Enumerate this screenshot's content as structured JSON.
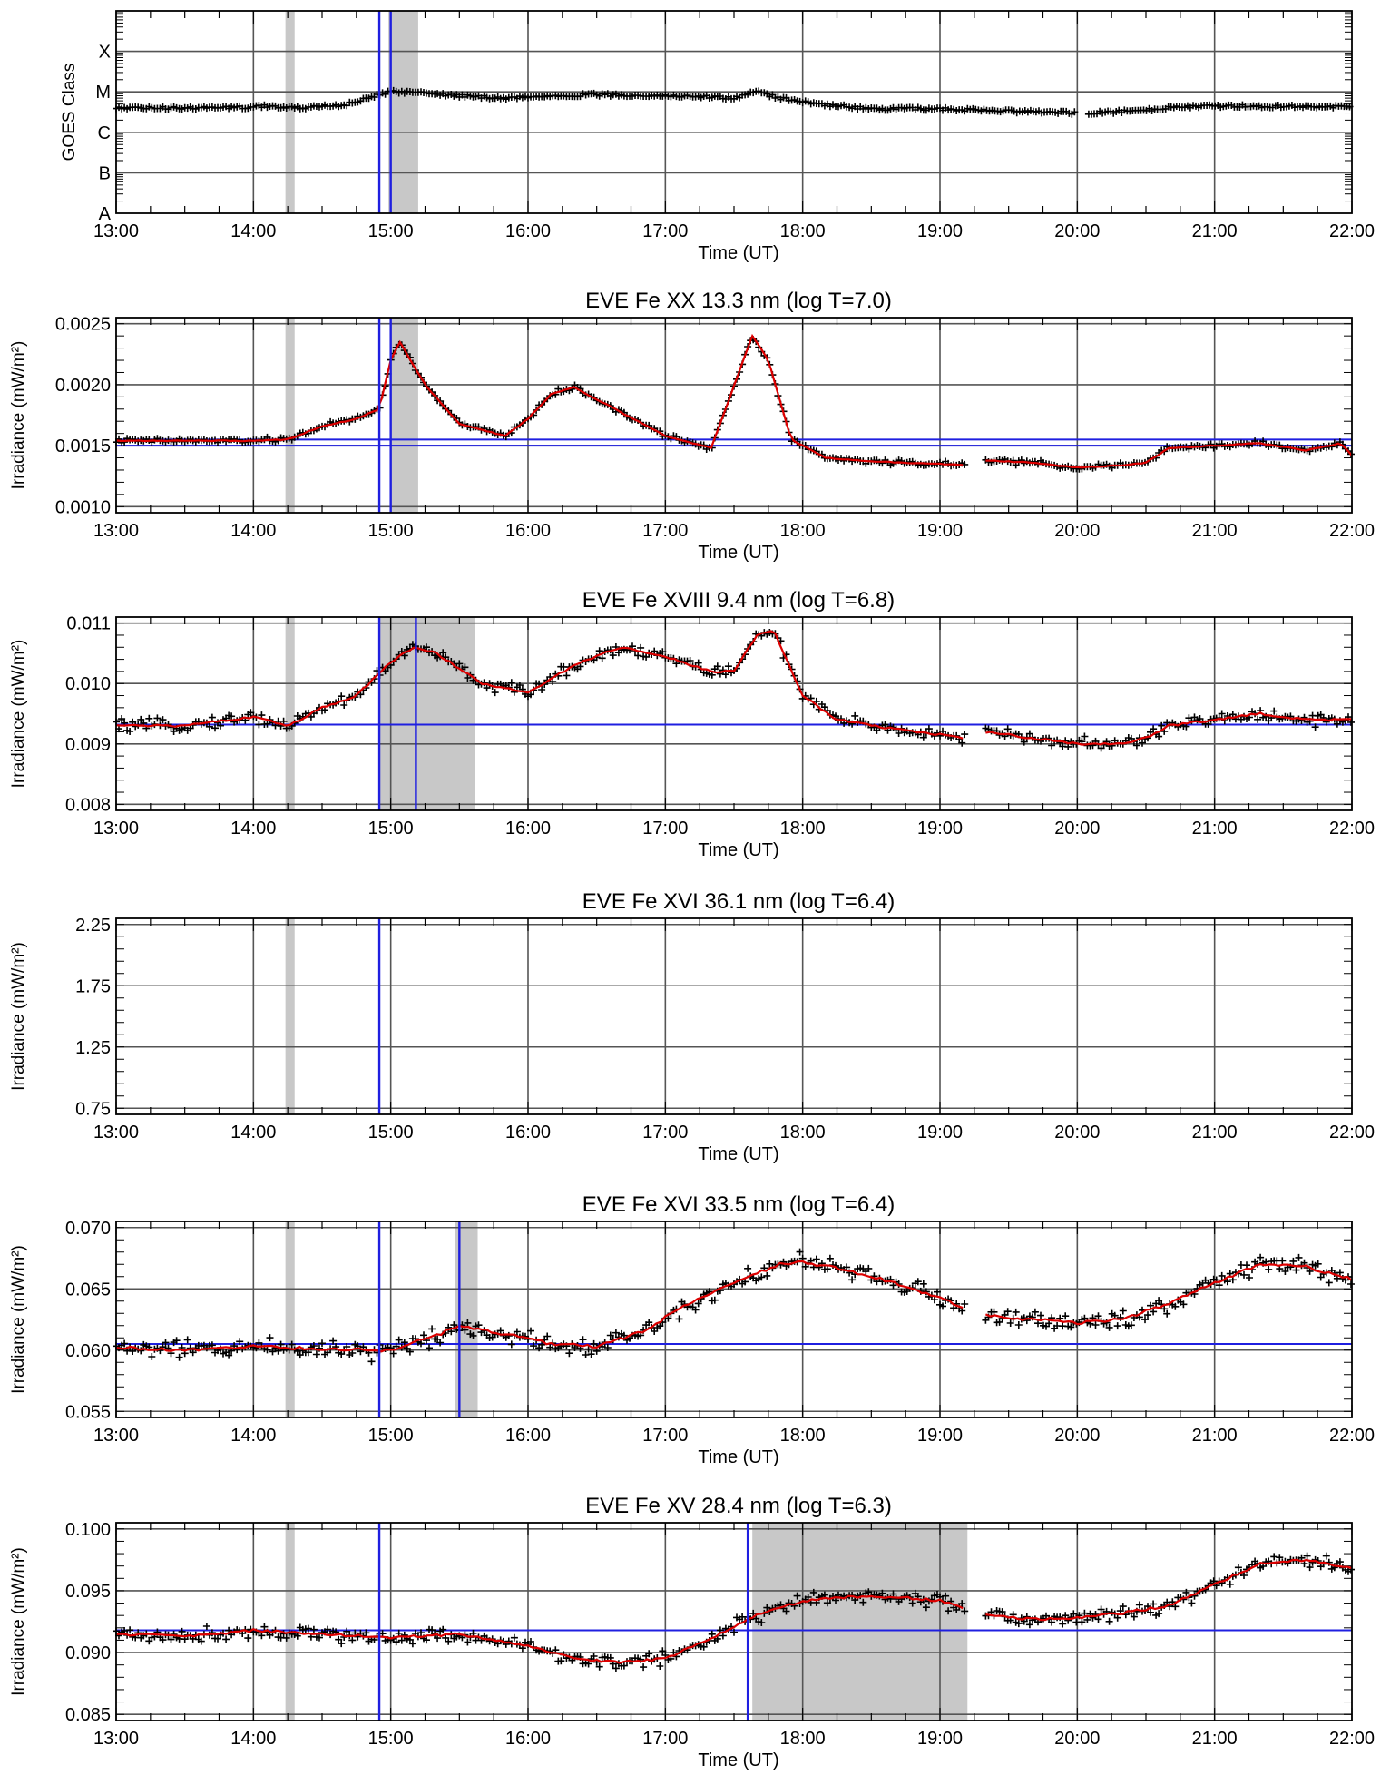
{
  "chart_data": [
    {
      "type": "line",
      "title": "",
      "xlabel": "Time (UT)",
      "ylabel": "GOES Class",
      "x_ticks": [
        "13:00",
        "14:00",
        "15:00",
        "16:00",
        "17:00",
        "18:00",
        "19:00",
        "20:00",
        "21:00",
        "22:00"
      ],
      "xlim": [
        "13:00",
        "22:00"
      ],
      "y_ticks": [
        "A",
        "B",
        "C",
        "M",
        "X"
      ],
      "ylim_log_flux": [
        1e-08,
        0.001
      ],
      "shaded_intervals": [
        [
          "14:14",
          "14:18"
        ],
        [
          "14:59",
          "15:12"
        ]
      ],
      "vlines": [
        "14:55",
        "15:00"
      ],
      "hlines": [],
      "series": [
        {
          "style": "points",
          "color": "#000000",
          "x": [
            "13:00",
            "13:30",
            "14:00",
            "14:05",
            "14:10",
            "14:20",
            "14:40",
            "15:00",
            "15:10",
            "15:30",
            "15:50",
            "16:10",
            "16:30",
            "17:00",
            "17:20",
            "17:30",
            "17:40",
            "17:50",
            "18:10",
            "18:30",
            "19:00",
            "19:30",
            "20:00"
          ],
          "y": [
            "C4",
            "C4",
            "C4.2",
            "C4.6",
            "C4.1",
            "C4",
            "C4.8",
            "M1",
            "M1",
            "C8",
            "C7",
            "C8",
            "C8.5",
            "C8",
            "C7.5",
            "C7",
            "M1",
            "C7",
            "C4.8",
            "C3.8",
            "C3.8",
            "C3.3",
            "C3"
          ]
        },
        {
          "style": "points",
          "color": "#000000",
          "x": [
            "20:05",
            "20:30",
            "20:40",
            "21:00",
            "21:30",
            "22:00"
          ],
          "y": [
            "C3",
            "C3.5",
            "C4.2",
            "C4.5",
            "C4.4",
            "C4.2"
          ]
        }
      ]
    },
    {
      "type": "line",
      "title": "EVE Fe XX 13.3 nm (log T=7.0)",
      "xlabel": "Time (UT)",
      "ylabel": "Irradiance (mW/m²)",
      "x_ticks": [
        "13:00",
        "14:00",
        "15:00",
        "16:00",
        "17:00",
        "18:00",
        "19:00",
        "20:00",
        "21:00",
        "22:00"
      ],
      "xlim": [
        "13:00",
        "22:00"
      ],
      "y_ticks": [
        "0.0010",
        "0.0015",
        "0.0020",
        "0.0025"
      ],
      "ylim": [
        0.00095,
        0.00255
      ],
      "shaded_intervals": [
        [
          "14:14",
          "14:18"
        ],
        [
          "15:00",
          "15:12"
        ]
      ],
      "vlines": [
        "14:55",
        "15:00"
      ],
      "hlines": [
        0.00155,
        0.0015
      ],
      "series": [
        {
          "style": "points+smooth",
          "color": "#cc0000",
          "x": [
            "13:00",
            "14:00",
            "14:15",
            "14:30",
            "14:45",
            "14:55",
            "15:00",
            "15:04",
            "15:15",
            "15:30",
            "15:50",
            "16:00",
            "16:10",
            "16:20",
            "16:40",
            "17:00",
            "17:20",
            "17:38",
            "17:45",
            "17:55",
            "18:10",
            "18:30",
            "19:00",
            "19:11"
          ],
          "y": [
            0.00154,
            0.00154,
            0.00155,
            0.00166,
            0.00172,
            0.0018,
            0.0022,
            0.00235,
            0.002,
            0.00168,
            0.00158,
            0.00172,
            0.00192,
            0.00198,
            0.00178,
            0.00158,
            0.00148,
            0.0024,
            0.0022,
            0.00155,
            0.0014,
            0.00137,
            0.00135,
            0.00134
          ]
        },
        {
          "style": "points+smooth",
          "color": "#cc0000",
          "x": [
            "19:20",
            "19:40",
            "20:00",
            "20:20",
            "20:30",
            "20:40",
            "21:00",
            "21:20",
            "21:40",
            "21:55",
            "22:00"
          ],
          "y": [
            0.00138,
            0.00136,
            0.00132,
            0.00134,
            0.00136,
            0.00148,
            0.0015,
            0.00152,
            0.00146,
            0.00152,
            0.00142
          ]
        }
      ]
    },
    {
      "type": "line",
      "title": "EVE Fe XVIII 9.4 nm (log T=6.8)",
      "xlabel": "Time (UT)",
      "ylabel": "Irradiance (mW/m²)",
      "x_ticks": [
        "13:00",
        "14:00",
        "15:00",
        "16:00",
        "17:00",
        "18:00",
        "19:00",
        "20:00",
        "21:00",
        "22:00"
      ],
      "xlim": [
        "13:00",
        "22:00"
      ],
      "y_ticks": [
        "0.008",
        "0.009",
        "0.010",
        "0.011"
      ],
      "ylim": [
        0.0079,
        0.0111
      ],
      "shaded_intervals": [
        [
          "14:14",
          "14:18"
        ],
        [
          "14:55",
          "15:37"
        ]
      ],
      "vlines": [
        "14:55",
        "15:11"
      ],
      "hlines": [
        0.00932
      ],
      "series": [
        {
          "style": "points+smooth",
          "color": "#cc0000",
          "x": [
            "13:00",
            "13:30",
            "14:00",
            "14:15",
            "14:30",
            "14:45",
            "15:00",
            "15:10",
            "15:20",
            "15:40",
            "16:00",
            "16:20",
            "16:40",
            "17:00",
            "17:20",
            "17:30",
            "17:40",
            "17:47",
            "18:00",
            "18:15",
            "18:40",
            "19:11"
          ],
          "y": [
            0.0093,
            0.0093,
            0.00945,
            0.0093,
            0.0096,
            0.0098,
            0.01035,
            0.0106,
            0.0105,
            0.01,
            0.00985,
            0.0103,
            0.0106,
            0.01045,
            0.0102,
            0.0102,
            0.0108,
            0.0109,
            0.0098,
            0.0094,
            0.00925,
            0.0091
          ]
        },
        {
          "style": "points+smooth",
          "color": "#cc0000",
          "x": [
            "19:20",
            "19:40",
            "20:00",
            "20:20",
            "20:30",
            "20:40",
            "21:00",
            "21:20",
            "21:40",
            "22:00"
          ],
          "y": [
            0.0092,
            0.0091,
            0.009,
            0.009,
            0.0091,
            0.0093,
            0.0094,
            0.0095,
            0.0094,
            0.0094
          ]
        }
      ]
    },
    {
      "type": "line",
      "title": "EVE Fe XVI 36.1 nm (log T=6.4)",
      "xlabel": "Time (UT)",
      "ylabel": "Irradiance (mW/m²)",
      "x_ticks": [
        "13:00",
        "14:00",
        "15:00",
        "16:00",
        "17:00",
        "18:00",
        "19:00",
        "20:00",
        "21:00",
        "22:00"
      ],
      "xlim": [
        "13:00",
        "22:00"
      ],
      "y_ticks": [
        "0.75",
        "1.25",
        "1.75",
        "2.25"
      ],
      "ylim": [
        0.7,
        2.3
      ],
      "shaded_intervals": [
        [
          "14:14",
          "14:18"
        ]
      ],
      "vlines": [
        "14:55"
      ],
      "hlines": [],
      "series": []
    },
    {
      "type": "line",
      "title": "EVE Fe XVI 33.5 nm (log T=6.4)",
      "xlabel": "Time (UT)",
      "ylabel": "Irradiance (mW/m²)",
      "x_ticks": [
        "13:00",
        "14:00",
        "15:00",
        "16:00",
        "17:00",
        "18:00",
        "19:00",
        "20:00",
        "21:00",
        "22:00"
      ],
      "xlim": [
        "13:00",
        "22:00"
      ],
      "y_ticks": [
        "0.055",
        "0.060",
        "0.065",
        "0.070"
      ],
      "ylim": [
        0.0545,
        0.0705
      ],
      "shaded_intervals": [
        [
          "14:14",
          "14:18"
        ],
        [
          "15:28",
          "15:38"
        ]
      ],
      "vlines": [
        "14:55",
        "15:30"
      ],
      "hlines": [
        0.0605
      ],
      "series": [
        {
          "style": "points+smooth",
          "color": "#cc0000",
          "x": [
            "13:00",
            "13:30",
            "14:00",
            "14:30",
            "15:00",
            "15:20",
            "15:30",
            "15:50",
            "16:10",
            "16:30",
            "16:50",
            "17:10",
            "17:30",
            "17:50",
            "18:00",
            "18:20",
            "18:40",
            "19:00",
            "19:11"
          ],
          "y": [
            0.0602,
            0.06,
            0.0603,
            0.0601,
            0.06,
            0.0612,
            0.062,
            0.0613,
            0.0605,
            0.0603,
            0.0615,
            0.0638,
            0.0655,
            0.067,
            0.0672,
            0.0665,
            0.0655,
            0.0642,
            0.0635
          ]
        },
        {
          "style": "points+smooth",
          "color": "#cc0000",
          "x": [
            "19:20",
            "19:40",
            "20:00",
            "20:20",
            "20:40",
            "21:00",
            "21:20",
            "21:40",
            "22:00"
          ],
          "y": [
            0.0628,
            0.0625,
            0.0622,
            0.0625,
            0.0638,
            0.0655,
            0.067,
            0.0668,
            0.0658
          ]
        }
      ]
    },
    {
      "type": "line",
      "title": "EVE Fe XV 28.4 nm (log T=6.3)",
      "xlabel": "Time (UT)",
      "ylabel": "Irradiance (mW/m²)",
      "x_ticks": [
        "13:00",
        "14:00",
        "15:00",
        "16:00",
        "17:00",
        "18:00",
        "19:00",
        "20:00",
        "21:00",
        "22:00"
      ],
      "xlim": [
        "13:00",
        "22:00"
      ],
      "y_ticks": [
        "0.085",
        "0.090",
        "0.095",
        "0.100"
      ],
      "ylim": [
        0.0845,
        0.1005
      ],
      "shaded_intervals": [
        [
          "14:14",
          "14:18"
        ],
        [
          "17:38",
          "19:12"
        ]
      ],
      "vlines": [
        "14:55",
        "17:36"
      ],
      "hlines": [
        0.0918
      ],
      "series": [
        {
          "style": "points+smooth",
          "color": "#cc0000",
          "x": [
            "13:00",
            "13:30",
            "14:00",
            "14:30",
            "15:00",
            "15:30",
            "16:00",
            "16:20",
            "16:40",
            "17:00",
            "17:20",
            "17:40",
            "18:00",
            "18:20",
            "18:40",
            "19:00",
            "19:11"
          ],
          "y": [
            0.0915,
            0.0913,
            0.0918,
            0.0915,
            0.0912,
            0.0915,
            0.0905,
            0.0895,
            0.0892,
            0.0895,
            0.0912,
            0.093,
            0.0942,
            0.0945,
            0.0945,
            0.0942,
            0.0935
          ]
        },
        {
          "style": "points+smooth",
          "color": "#cc0000",
          "x": [
            "19:20",
            "19:40",
            "20:00",
            "20:20",
            "20:40",
            "21:00",
            "21:20",
            "21:40",
            "22:00"
          ],
          "y": [
            0.093,
            0.0927,
            0.0928,
            0.0932,
            0.0938,
            0.0955,
            0.0972,
            0.0975,
            0.0968
          ]
        }
      ]
    }
  ]
}
